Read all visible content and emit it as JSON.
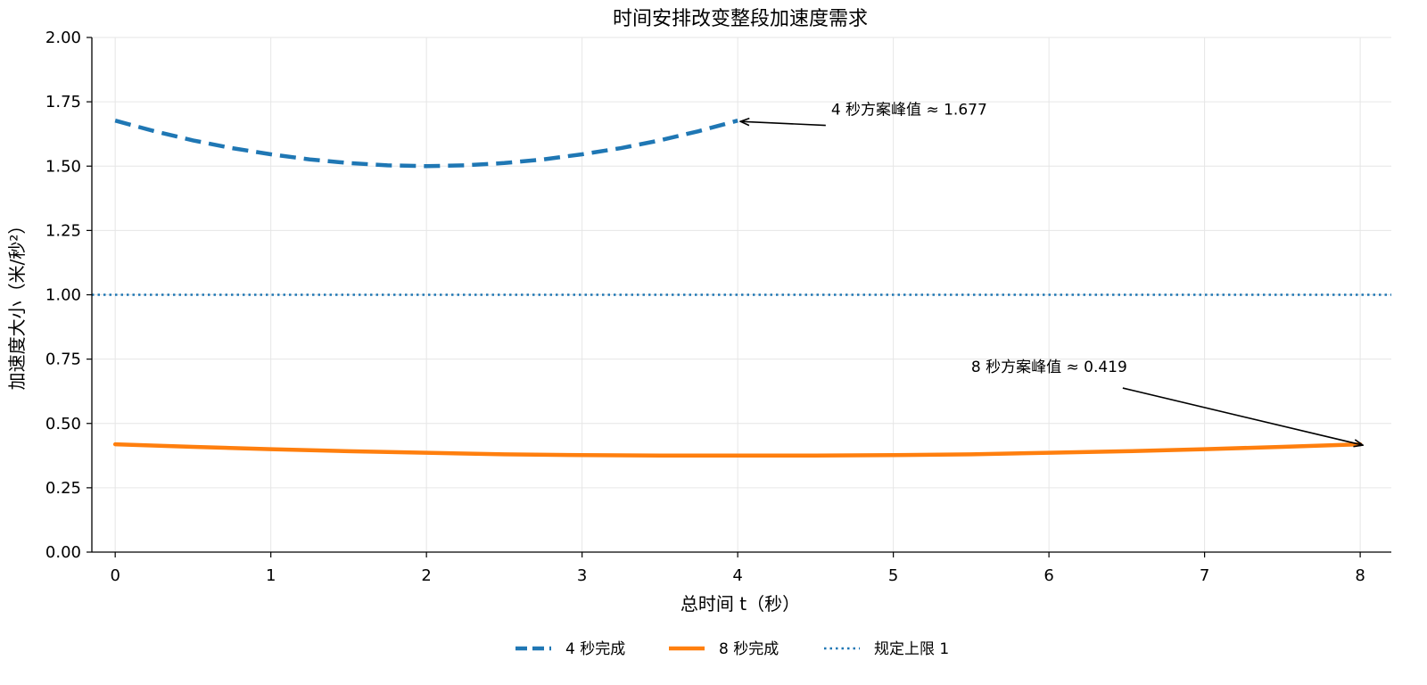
{
  "chart_data": {
    "type": "line",
    "title": "时间安排改变整段加速度需求",
    "xlabel": "总时间 t（秒）",
    "ylabel": "加速度大小（米/秒²）",
    "xlim": [
      -0.15,
      8.2
    ],
    "ylim": [
      0,
      2.0
    ],
    "xticks": [
      "0",
      "1",
      "2",
      "3",
      "4",
      "5",
      "6",
      "7",
      "8"
    ],
    "yticks": [
      "0.00",
      "0.25",
      "0.50",
      "0.75",
      "1.00",
      "1.25",
      "1.50",
      "1.75",
      "2.00"
    ],
    "grid": true,
    "legend": "bottom-center",
    "series": [
      {
        "name": "4 秒完成",
        "color": "#1f77b4",
        "style": "dashed",
        "x": [
          0,
          0.25,
          0.5,
          0.75,
          1,
          1.25,
          1.5,
          1.75,
          2,
          2.25,
          2.5,
          2.75,
          3,
          3.25,
          3.5,
          3.75,
          4
        ],
        "y": [
          1.677,
          1.636,
          1.6,
          1.57,
          1.546,
          1.526,
          1.512,
          1.503,
          1.5,
          1.503,
          1.512,
          1.526,
          1.546,
          1.57,
          1.6,
          1.636,
          1.677
        ]
      },
      {
        "name": "8 秒完成",
        "color": "#ff7f0e",
        "style": "solid",
        "x": [
          0,
          0.5,
          1,
          1.5,
          2,
          2.5,
          3,
          3.5,
          4,
          4.5,
          5,
          5.5,
          6,
          6.5,
          7,
          7.5,
          8
        ],
        "y": [
          0.419,
          0.409,
          0.4,
          0.392,
          0.386,
          0.38,
          0.377,
          0.375,
          0.375,
          0.375,
          0.377,
          0.38,
          0.386,
          0.392,
          0.4,
          0.409,
          0.419
        ]
      },
      {
        "name": "规定上限 1",
        "color": "#1f77b4",
        "style": "dotted",
        "x": [
          -0.15,
          8.2
        ],
        "y": [
          1.0,
          1.0
        ]
      }
    ],
    "annotations": [
      {
        "text": "4 秒方案峰值 ≈ 1.677",
        "point": [
          4,
          1.677
        ],
        "text_at": [
          4.6,
          1.7
        ]
      },
      {
        "text": "8 秒方案峰值 ≈ 0.419",
        "point": [
          8,
          0.419
        ],
        "text_at": [
          5.5,
          0.7
        ]
      }
    ]
  }
}
